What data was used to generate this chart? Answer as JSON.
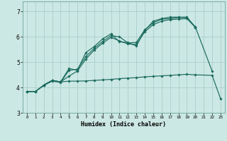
{
  "xlabel": "Humidex (Indice chaleur)",
  "background_color": "#cce8e4",
  "grid_color": "#aaceca",
  "line_color": "#1a6b5e",
  "xlim": [
    -0.5,
    23.5
  ],
  "ylim": [
    3.0,
    7.4
  ],
  "yticks": [
    3,
    4,
    5,
    6,
    7
  ],
  "xticks": [
    0,
    1,
    2,
    3,
    4,
    5,
    6,
    7,
    8,
    9,
    10,
    11,
    12,
    13,
    14,
    15,
    16,
    17,
    18,
    19,
    20,
    21,
    22,
    23
  ],
  "line1_x": [
    0,
    1,
    2,
    3,
    4,
    5,
    6,
    7,
    8,
    9,
    10,
    11,
    12,
    13,
    14,
    15,
    16,
    17,
    18,
    19,
    20,
    22
  ],
  "line1_y": [
    3.84,
    3.84,
    4.08,
    4.25,
    4.2,
    4.68,
    4.72,
    5.22,
    5.55,
    5.82,
    6.05,
    6.0,
    5.76,
    5.78,
    6.28,
    6.55,
    6.7,
    6.72,
    6.76,
    6.76,
    6.4,
    4.65
  ],
  "line2_x": [
    0,
    1,
    2,
    3,
    4,
    5,
    6,
    7,
    8,
    9,
    10,
    11,
    12,
    13,
    14,
    15,
    16,
    17,
    18,
    19,
    20
  ],
  "line2_y": [
    3.84,
    3.84,
    4.1,
    4.28,
    4.22,
    4.75,
    4.68,
    5.38,
    5.62,
    5.92,
    6.12,
    5.8,
    5.78,
    5.64,
    6.25,
    6.62,
    6.72,
    6.78,
    6.78,
    6.78,
    6.38
  ],
  "line3_x": [
    2,
    3,
    4,
    5,
    6,
    7,
    8,
    9,
    10,
    11,
    12,
    13,
    14,
    15,
    16,
    17,
    18,
    19,
    20
  ],
  "line3_y": [
    4.1,
    4.28,
    4.22,
    4.45,
    4.65,
    5.12,
    5.48,
    5.75,
    5.98,
    5.84,
    5.72,
    5.7,
    6.2,
    6.48,
    6.62,
    6.68,
    6.7,
    6.72,
    6.38
  ],
  "line4_x": [
    0,
    1,
    2,
    3,
    4,
    5,
    6,
    7,
    8,
    9,
    10,
    11,
    12,
    13,
    14,
    15,
    16,
    17,
    18,
    19,
    20,
    22,
    23
  ],
  "line4_y": [
    3.84,
    3.84,
    4.08,
    4.28,
    4.22,
    4.25,
    4.25,
    4.26,
    4.28,
    4.3,
    4.32,
    4.35,
    4.37,
    4.39,
    4.42,
    4.44,
    4.46,
    4.48,
    4.5,
    4.52,
    4.5,
    4.48,
    3.56
  ]
}
